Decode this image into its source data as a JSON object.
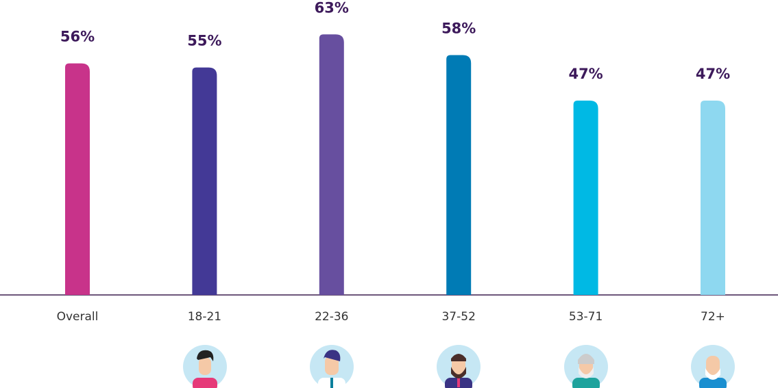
{
  "chart_data": {
    "type": "bar",
    "categories": [
      "Overall",
      "18-21",
      "22-36",
      "37-52",
      "53-71",
      "72+"
    ],
    "values": [
      56,
      55,
      63,
      58,
      47,
      47
    ],
    "value_labels": [
      "56%",
      "55%",
      "63%",
      "58%",
      "47%",
      "47%"
    ],
    "colors": [
      "#c8338a",
      "#433996",
      "#674f9f",
      "#007bb5",
      "#00b9e4",
      "#8ed8f0"
    ],
    "ylim": [
      0,
      70
    ]
  }
}
